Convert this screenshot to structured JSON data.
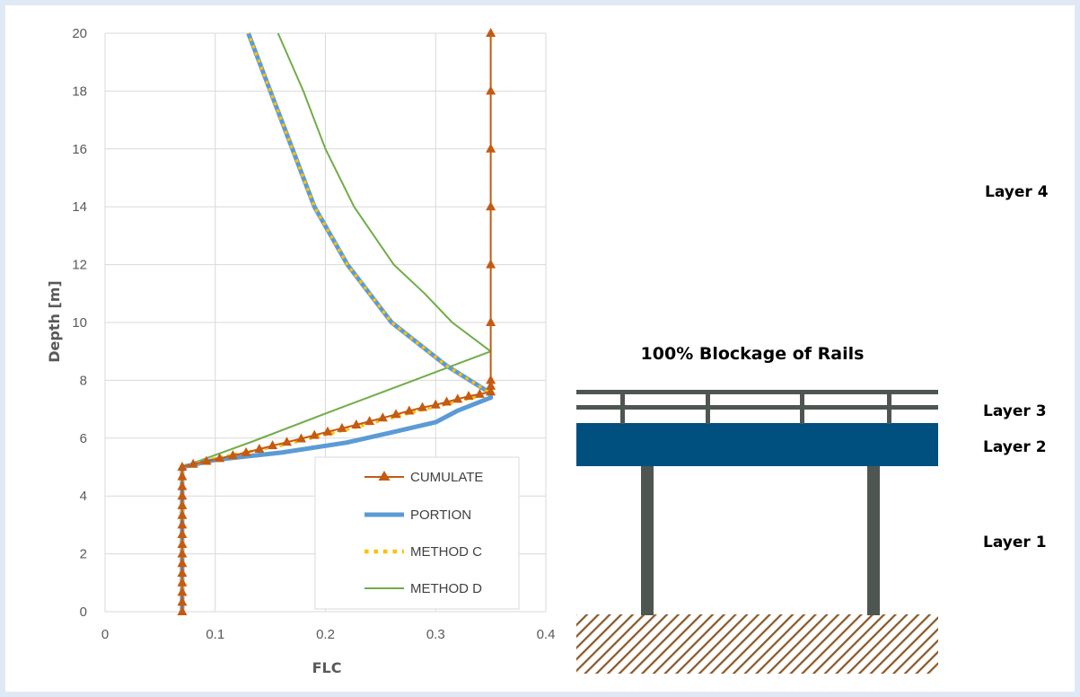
{
  "chart_data": {
    "type": "line",
    "xlabel": "FLC",
    "ylabel": "Depth [m]",
    "xlim": [
      0,
      0.4
    ],
    "ylim": [
      0,
      20
    ],
    "x_ticks": [
      "0",
      "0.1",
      "0.2",
      "0.3",
      "0.4"
    ],
    "y_ticks": [
      "0",
      "2",
      "4",
      "6",
      "8",
      "10",
      "12",
      "14",
      "16",
      "18",
      "20"
    ],
    "grid": "vertical and horizontal major gridlines",
    "legend_position": "lower-right",
    "series": [
      {
        "name": "CUMULATE",
        "color": "#c55a11",
        "marker": "triangle",
        "points": [
          [
            0.07,
            0.0
          ],
          [
            0.07,
            0.33
          ],
          [
            0.07,
            0.67
          ],
          [
            0.07,
            1.0
          ],
          [
            0.07,
            1.33
          ],
          [
            0.07,
            1.67
          ],
          [
            0.07,
            2.0
          ],
          [
            0.07,
            2.33
          ],
          [
            0.07,
            2.67
          ],
          [
            0.07,
            3.0
          ],
          [
            0.07,
            3.33
          ],
          [
            0.07,
            3.67
          ],
          [
            0.07,
            4.0
          ],
          [
            0.07,
            4.33
          ],
          [
            0.07,
            4.67
          ],
          [
            0.07,
            5.0
          ],
          [
            0.08,
            5.1
          ],
          [
            0.092,
            5.2
          ],
          [
            0.104,
            5.3
          ],
          [
            0.116,
            5.4
          ],
          [
            0.128,
            5.5
          ],
          [
            0.14,
            5.62
          ],
          [
            0.152,
            5.74
          ],
          [
            0.165,
            5.86
          ],
          [
            0.178,
            5.98
          ],
          [
            0.19,
            6.1
          ],
          [
            0.202,
            6.22
          ],
          [
            0.215,
            6.34
          ],
          [
            0.228,
            6.46
          ],
          [
            0.24,
            6.58
          ],
          [
            0.252,
            6.7
          ],
          [
            0.264,
            6.82
          ],
          [
            0.276,
            6.94
          ],
          [
            0.288,
            7.06
          ],
          [
            0.3,
            7.15
          ],
          [
            0.31,
            7.25
          ],
          [
            0.32,
            7.35
          ],
          [
            0.33,
            7.45
          ],
          [
            0.34,
            7.52
          ],
          [
            0.35,
            7.6
          ],
          [
            0.35,
            7.8
          ],
          [
            0.35,
            8.0
          ],
          [
            0.35,
            10.0
          ],
          [
            0.35,
            12.0
          ],
          [
            0.35,
            14.0
          ],
          [
            0.35,
            16.0
          ],
          [
            0.35,
            18.0
          ],
          [
            0.35,
            20.0
          ]
        ]
      },
      {
        "name": "PORTION",
        "color": "#5b9bd5",
        "points": [
          [
            0.07,
            0.0
          ],
          [
            0.07,
            5.0
          ],
          [
            0.1,
            5.25
          ],
          [
            0.16,
            5.5
          ],
          [
            0.22,
            5.85
          ],
          [
            0.26,
            6.2
          ],
          [
            0.3,
            6.55
          ],
          [
            0.32,
            6.95
          ],
          [
            0.35,
            7.4
          ],
          [
            0.35,
            7.55
          ],
          [
            0.31,
            8.5
          ],
          [
            0.26,
            10.0
          ],
          [
            0.22,
            12.0
          ],
          [
            0.19,
            14.0
          ],
          [
            0.17,
            16.0
          ],
          [
            0.15,
            18.0
          ],
          [
            0.13,
            20.0
          ]
        ]
      },
      {
        "name": "METHOD C",
        "color": "#ffc000",
        "style": "dotted",
        "points": [
          [
            0.07,
            0.0
          ],
          [
            0.07,
            5.0
          ],
          [
            0.1,
            5.3
          ],
          [
            0.16,
            5.75
          ],
          [
            0.22,
            6.3
          ],
          [
            0.28,
            6.9
          ],
          [
            0.35,
            7.55
          ],
          [
            0.31,
            8.5
          ],
          [
            0.26,
            10.0
          ],
          [
            0.22,
            12.0
          ],
          [
            0.19,
            14.0
          ],
          [
            0.17,
            16.0
          ],
          [
            0.15,
            18.0
          ],
          [
            0.13,
            20.0
          ]
        ]
      },
      {
        "name": "METHOD D",
        "color": "#70ad47",
        "points": [
          [
            0.07,
            0.0
          ],
          [
            0.07,
            5.0
          ],
          [
            0.135,
            5.9
          ],
          [
            0.2,
            6.85
          ],
          [
            0.27,
            7.85
          ],
          [
            0.35,
            9.0
          ],
          [
            0.315,
            10.0
          ],
          [
            0.29,
            11.0
          ],
          [
            0.262,
            12.0
          ],
          [
            0.226,
            14.0
          ],
          [
            0.2,
            16.0
          ],
          [
            0.18,
            18.0
          ],
          [
            0.157,
            20.0
          ]
        ]
      }
    ]
  },
  "diagram": {
    "title": "100% Blockage of Rails",
    "layers": [
      "Layer 4",
      "Layer 3",
      "Layer 2",
      "Layer 1"
    ],
    "colors": {
      "deck": "#00507f",
      "structure": "#4f5651",
      "ground": "#8b5a2b"
    }
  }
}
